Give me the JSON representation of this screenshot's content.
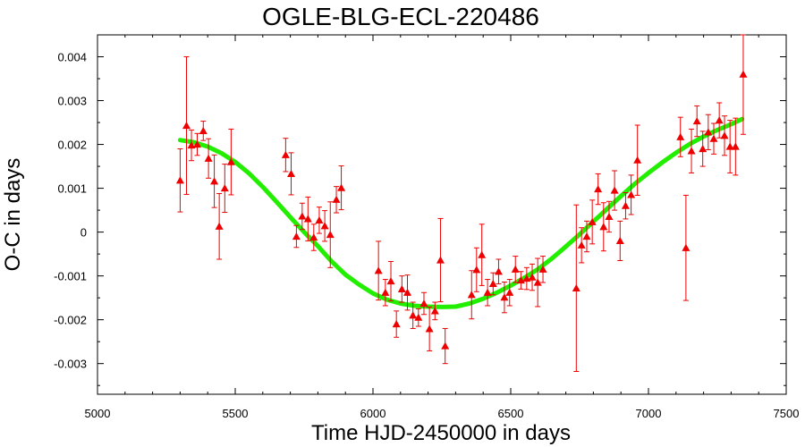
{
  "chart_data": {
    "type": "scatter",
    "title": "OGLE-BLG-ECL-220486",
    "xlabel": "Time HJD-2450000 in days",
    "ylabel": "O-C in days",
    "xlim": [
      5000,
      7500
    ],
    "ylim": [
      -0.0037,
      0.0045
    ],
    "xticks": [
      5000,
      5500,
      6000,
      6500,
      7000,
      7500
    ],
    "xtick_labels": [
      "5000",
      "5500",
      "6000",
      "6500",
      "7000",
      "7500"
    ],
    "yticks": [
      0.004,
      0.003,
      0.002,
      0.001,
      0,
      -0.001,
      -0.002,
      -0.003
    ],
    "ytick_labels": [
      "0.004",
      "0.003",
      "0.002",
      "0.001",
      "0",
      "-0.001",
      "-0.002",
      "-0.003"
    ],
    "grid": false,
    "legend": "none",
    "colors": {
      "points": "#ee0000",
      "fit": "#22ee00"
    },
    "series": [
      {
        "marker": "triangle",
        "color": "#ee0000",
        "points": [
          {
            "x": 5300,
            "y": 0.00118,
            "err": 0.00072
          },
          {
            "x": 5323,
            "y": 0.00243,
            "err": 0.00157
          },
          {
            "x": 5341,
            "y": 0.00198,
            "err": 0.00035
          },
          {
            "x": 5362,
            "y": 0.002,
            "err": 0.00025
          },
          {
            "x": 5384,
            "y": 0.00231,
            "err": 0.00022
          },
          {
            "x": 5403,
            "y": 0.00168,
            "err": 0.00045
          },
          {
            "x": 5424,
            "y": 0.00116,
            "err": 0.0006
          },
          {
            "x": 5442,
            "y": 0.00013,
            "err": 0.00075
          },
          {
            "x": 5462,
            "y": 0.001,
            "err": 0.00055
          },
          {
            "x": 5485,
            "y": 0.0016,
            "err": 0.00075
          },
          {
            "x": 5683,
            "y": 0.00176,
            "err": 0.00038
          },
          {
            "x": 5703,
            "y": 0.00133,
            "err": 0.00048
          },
          {
            "x": 5722,
            "y": -0.0001,
            "err": 0.00025
          },
          {
            "x": 5743,
            "y": 0.00036,
            "err": 0.0003
          },
          {
            "x": 5764,
            "y": 0.0003,
            "err": 0.0005
          },
          {
            "x": 5785,
            "y": -0.00012,
            "err": 0.0003
          },
          {
            "x": 5805,
            "y": 0.00027,
            "err": 0.0003
          },
          {
            "x": 5825,
            "y": 0.00014,
            "err": 0.00035
          },
          {
            "x": 5845,
            "y": -6e-05,
            "err": 0.00075
          },
          {
            "x": 5867,
            "y": 0.00074,
            "err": 0.0003
          },
          {
            "x": 5885,
            "y": 0.00101,
            "err": 0.0005
          },
          {
            "x": 6020,
            "y": -0.00088,
            "err": 0.00067
          },
          {
            "x": 6045,
            "y": -0.00138,
            "err": 0.0003
          },
          {
            "x": 6065,
            "y": -0.00112,
            "err": 0.00045
          },
          {
            "x": 6085,
            "y": -0.0021,
            "err": 0.0003
          },
          {
            "x": 6105,
            "y": -0.0013,
            "err": 0.0003
          },
          {
            "x": 6125,
            "y": -0.00138,
            "err": 0.0004
          },
          {
            "x": 6145,
            "y": -0.0019,
            "err": 0.0003
          },
          {
            "x": 6165,
            "y": -0.00195,
            "err": 0.0002
          },
          {
            "x": 6185,
            "y": -0.00163,
            "err": 0.00025
          },
          {
            "x": 6205,
            "y": -0.00221,
            "err": 0.0005
          },
          {
            "x": 6225,
            "y": -0.0018,
            "err": 0.0002
          },
          {
            "x": 6245,
            "y": -0.00064,
            "err": 0.00095
          },
          {
            "x": 6262,
            "y": -0.0026,
            "err": 0.0004
          },
          {
            "x": 6358,
            "y": -0.00143,
            "err": 0.00055
          },
          {
            "x": 6376,
            "y": -0.00086,
            "err": 0.0005
          },
          {
            "x": 6395,
            "y": -0.00052,
            "err": 0.0007
          },
          {
            "x": 6416,
            "y": -0.00138,
            "err": 0.0003
          },
          {
            "x": 6436,
            "y": -0.00118,
            "err": 0.00025
          },
          {
            "x": 6456,
            "y": -0.0009,
            "err": 0.00028
          },
          {
            "x": 6477,
            "y": -0.00149,
            "err": 0.00035
          },
          {
            "x": 6496,
            "y": -0.00138,
            "err": 0.0003
          },
          {
            "x": 6517,
            "y": -0.00085,
            "err": 0.0003
          },
          {
            "x": 6537,
            "y": -0.0011,
            "err": 0.0002
          },
          {
            "x": 6558,
            "y": -0.00106,
            "err": 0.00025
          },
          {
            "x": 6578,
            "y": -0.00103,
            "err": 0.0003
          },
          {
            "x": 6598,
            "y": -0.00115,
            "err": 0.00055
          },
          {
            "x": 6617,
            "y": -0.00085,
            "err": 0.0003
          },
          {
            "x": 6738,
            "y": -0.00128,
            "err": 0.0019
          },
          {
            "x": 6757,
            "y": -0.0003,
            "err": 0.0004
          },
          {
            "x": 6776,
            "y": -0.0001,
            "err": 0.00035
          },
          {
            "x": 6796,
            "y": 0.00023,
            "err": 0.0005
          },
          {
            "x": 6817,
            "y": 0.00098,
            "err": 0.00035
          },
          {
            "x": 6837,
            "y": 0.00012,
            "err": 0.00055
          },
          {
            "x": 6857,
            "y": 0.00035,
            "err": 0.00035
          },
          {
            "x": 6877,
            "y": 0.00095,
            "err": 0.00045
          },
          {
            "x": 6897,
            "y": -0.0002,
            "err": 0.00045
          },
          {
            "x": 6917,
            "y": 0.0006,
            "err": 0.0003
          },
          {
            "x": 6937,
            "y": 0.00085,
            "err": 0.00045
          },
          {
            "x": 6960,
            "y": 0.00164,
            "err": 0.0008
          },
          {
            "x": 7116,
            "y": 0.00217,
            "err": 0.00045
          },
          {
            "x": 7136,
            "y": -0.00036,
            "err": 0.0012
          },
          {
            "x": 7156,
            "y": 0.00185,
            "err": 0.0005
          },
          {
            "x": 7176,
            "y": 0.00253,
            "err": 0.00035
          },
          {
            "x": 7197,
            "y": 0.0019,
            "err": 0.0004
          },
          {
            "x": 7217,
            "y": 0.00228,
            "err": 0.0004
          },
          {
            "x": 7237,
            "y": 0.00213,
            "err": 0.00035
          },
          {
            "x": 7257,
            "y": 0.00255,
            "err": 0.0004
          },
          {
            "x": 7276,
            "y": 0.0022,
            "err": 0.00045
          },
          {
            "x": 7296,
            "y": 0.00195,
            "err": 0.0006
          },
          {
            "x": 7316,
            "y": 0.00195,
            "err": 0.00065
          },
          {
            "x": 7344,
            "y": 0.0036,
            "err": 0.00137
          }
        ]
      },
      {
        "type": "line",
        "color": "#22ee00",
        "x": [
          5300,
          5350,
          5400,
          5450,
          5500,
          5550,
          5600,
          5650,
          5700,
          5750,
          5800,
          5850,
          5900,
          5950,
          6000,
          6050,
          6100,
          6150,
          6200,
          6250,
          6300,
          6350,
          6400,
          6450,
          6500,
          6550,
          6600,
          6650,
          6700,
          6750,
          6800,
          6850,
          6900,
          6950,
          7000,
          7050,
          7100,
          7150,
          7200,
          7250,
          7300,
          7340
        ],
        "y": [
          0.0021,
          0.00205,
          0.00195,
          0.0018,
          0.0016,
          0.00134,
          0.00103,
          0.00069,
          0.00034,
          0.0,
          -0.00032,
          -0.00067,
          -0.00097,
          -0.0012,
          -0.0014,
          -0.00154,
          -0.00163,
          -0.00168,
          -0.0017,
          -0.00171,
          -0.0017,
          -0.00163,
          -0.00152,
          -0.00138,
          -0.00122,
          -0.00104,
          -0.00084,
          -0.0006,
          -0.00033,
          -5e-05,
          0.00024,
          0.00053,
          0.00082,
          0.0011,
          0.00135,
          0.00159,
          0.00181,
          0.00201,
          0.00218,
          0.00233,
          0.00246,
          0.00258
        ]
      }
    ]
  }
}
